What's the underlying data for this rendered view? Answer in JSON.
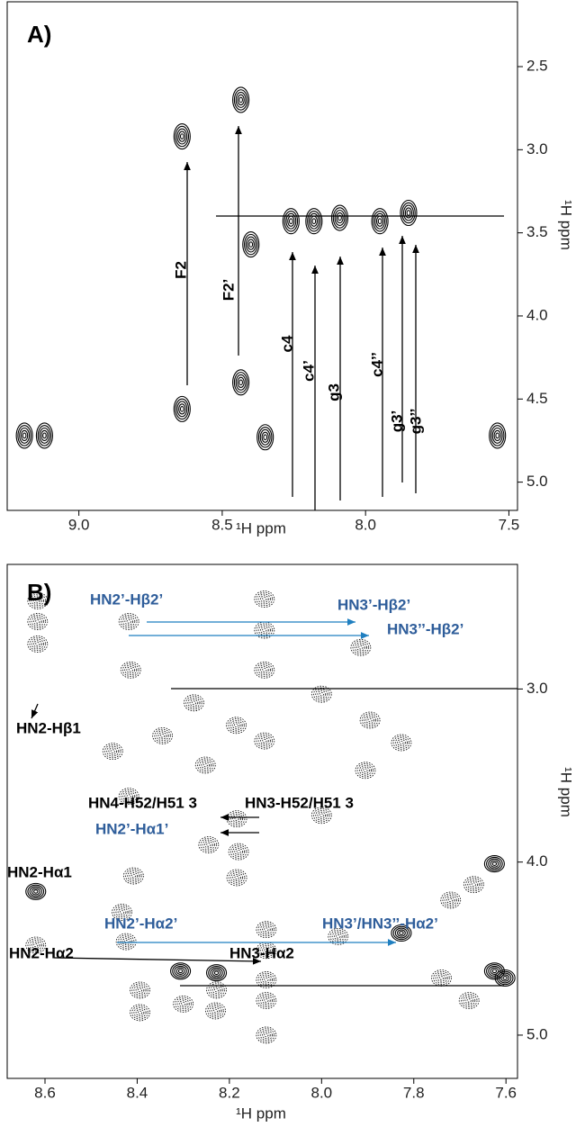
{
  "chart_data": [
    {
      "type": "contour",
      "panel_label": "A)",
      "x_label": "¹H ppm",
      "y_label": "¹H ppm",
      "xlim": [
        9.25,
        7.47
      ],
      "ylim": [
        2.11,
        5.17
      ],
      "xticks": [
        {
          "value": 9,
          "label": "9.0"
        },
        8.5,
        {
          "value": 8,
          "label": "8.0"
        },
        7.5
      ],
      "yticks": [
        2.5,
        {
          "value": 3,
          "label": "3.0"
        },
        3.5,
        {
          "value": 4,
          "label": "4.0"
        },
        4.5,
        {
          "value": 5,
          "label": "5.0"
        }
      ],
      "color": "#000000",
      "x": [
        8.64,
        8.64,
        8.435,
        8.435,
        8.4,
        8.26,
        8.18,
        8.09,
        7.95,
        7.85,
        9.19,
        9.12,
        8.35,
        7.54
      ],
      "y": [
        2.92,
        4.56,
        2.7,
        4.4,
        3.57,
        3.43,
        3.43,
        3.41,
        3.43,
        3.38,
        4.72,
        4.72,
        4.73,
        4.72
      ],
      "annotations": [
        {
          "text": "F2",
          "color": "#000000"
        },
        {
          "text": "F2’",
          "color": "#000000"
        },
        {
          "text": "c4",
          "color": "#000000"
        },
        {
          "text": "c4’",
          "color": "#000000"
        },
        {
          "text": "g3",
          "color": "#000000"
        },
        {
          "text": "c4’’",
          "color": "#000000"
        },
        {
          "text": "g3’",
          "color": "#000000"
        },
        {
          "text": "g3’’",
          "color": "#000000"
        }
      ]
    },
    {
      "type": "contour",
      "panel_label": "B)",
      "x_label": "¹H ppm",
      "y_label": "¹H ppm",
      "xlim": [
        8.682,
        7.575
      ],
      "ylim": [
        2.28,
        5.25
      ],
      "xticks": [
        8.6,
        8.4,
        8.2,
        {
          "value": 8,
          "label": "8.0"
        },
        7.8,
        7.6
      ],
      "yticks": [
        {
          "value": 3,
          "label": "3.0"
        },
        {
          "value": 4,
          "label": "4.0"
        },
        {
          "value": 5,
          "label": "5.0"
        }
      ],
      "color": "#000000",
      "x": [
        8.418,
        8.616,
        8.616,
        8.616,
        8.414,
        8.124,
        8.124,
        8.124,
        8.124,
        7.915,
        7.895,
        7.827,
        7.905,
        8.277,
        8.252,
        8.185,
        8.345,
        8.453,
        8.0,
        8.418,
        8.245,
        8.184,
        8.18,
        8.0,
        8.408,
        8.184,
        8.62,
        8.433,
        8.12,
        8.12,
        8.424,
        8.62,
        7.964,
        7.827,
        7.72,
        7.67,
        7.625,
        8.228,
        8.306,
        8.12,
        8.12,
        8.228,
        8.394,
        8.3,
        8.394,
        8.23,
        8.12,
        7.68,
        7.625,
        7.74,
        7.602
      ],
      "y": [
        2.61,
        2.49,
        2.61,
        2.74,
        2.89,
        2.48,
        2.66,
        2.89,
        3.3,
        2.76,
        3.18,
        3.31,
        3.47,
        3.08,
        3.44,
        3.21,
        3.27,
        3.36,
        3.03,
        3.62,
        3.9,
        3.75,
        3.94,
        3.73,
        4.08,
        4.09,
        4.17,
        4.29,
        4.39,
        4.51,
        4.46,
        4.48,
        4.43,
        4.41,
        4.22,
        4.13,
        4.01,
        4.64,
        4.63,
        4.68,
        4.8,
        4.74,
        4.74,
        4.82,
        4.87,
        4.86,
        5.0,
        4.8,
        4.63,
        4.67,
        4.67
      ],
      "dashed": [
        true,
        true,
        true,
        true,
        true,
        true,
        true,
        true,
        true,
        true,
        true,
        true,
        true,
        true,
        true,
        true,
        true,
        true,
        true,
        true,
        true,
        true,
        true,
        true,
        true,
        true,
        false,
        true,
        true,
        true,
        true,
        true,
        true,
        false,
        true,
        true,
        false,
        false,
        false,
        true,
        true,
        true,
        true,
        true,
        true,
        true,
        true,
        true,
        false,
        true,
        false
      ],
      "annotations": [
        {
          "text": "HN2’-Hβ2’",
          "color": "#2e5d9a"
        },
        {
          "text": "HN3’-Hβ2’",
          "color": "#2e5d9a"
        },
        {
          "text": "HN3’’-Hβ2’",
          "color": "#2e5d9a"
        },
        {
          "text": "HN2-Hβ1",
          "color": "#000000"
        },
        {
          "text": "HN4-H52/H51 3",
          "color": "#000000"
        },
        {
          "text": "HN3-H52/H51 3",
          "color": "#000000"
        },
        {
          "text": "HN2’-Hα1’",
          "color": "#2e5d9a"
        },
        {
          "text": "HN2-Hα1",
          "color": "#000000"
        },
        {
          "text": "HN2’-Hα2’",
          "color": "#2e5d9a"
        },
        {
          "text": "HN3’/HN3’’-Hα2’",
          "color": "#2e5d9a"
        },
        {
          "text": "HN2-Hα2",
          "color": "#000000"
        },
        {
          "text": "HN3-Hα2",
          "color": "#000000"
        }
      ]
    }
  ]
}
